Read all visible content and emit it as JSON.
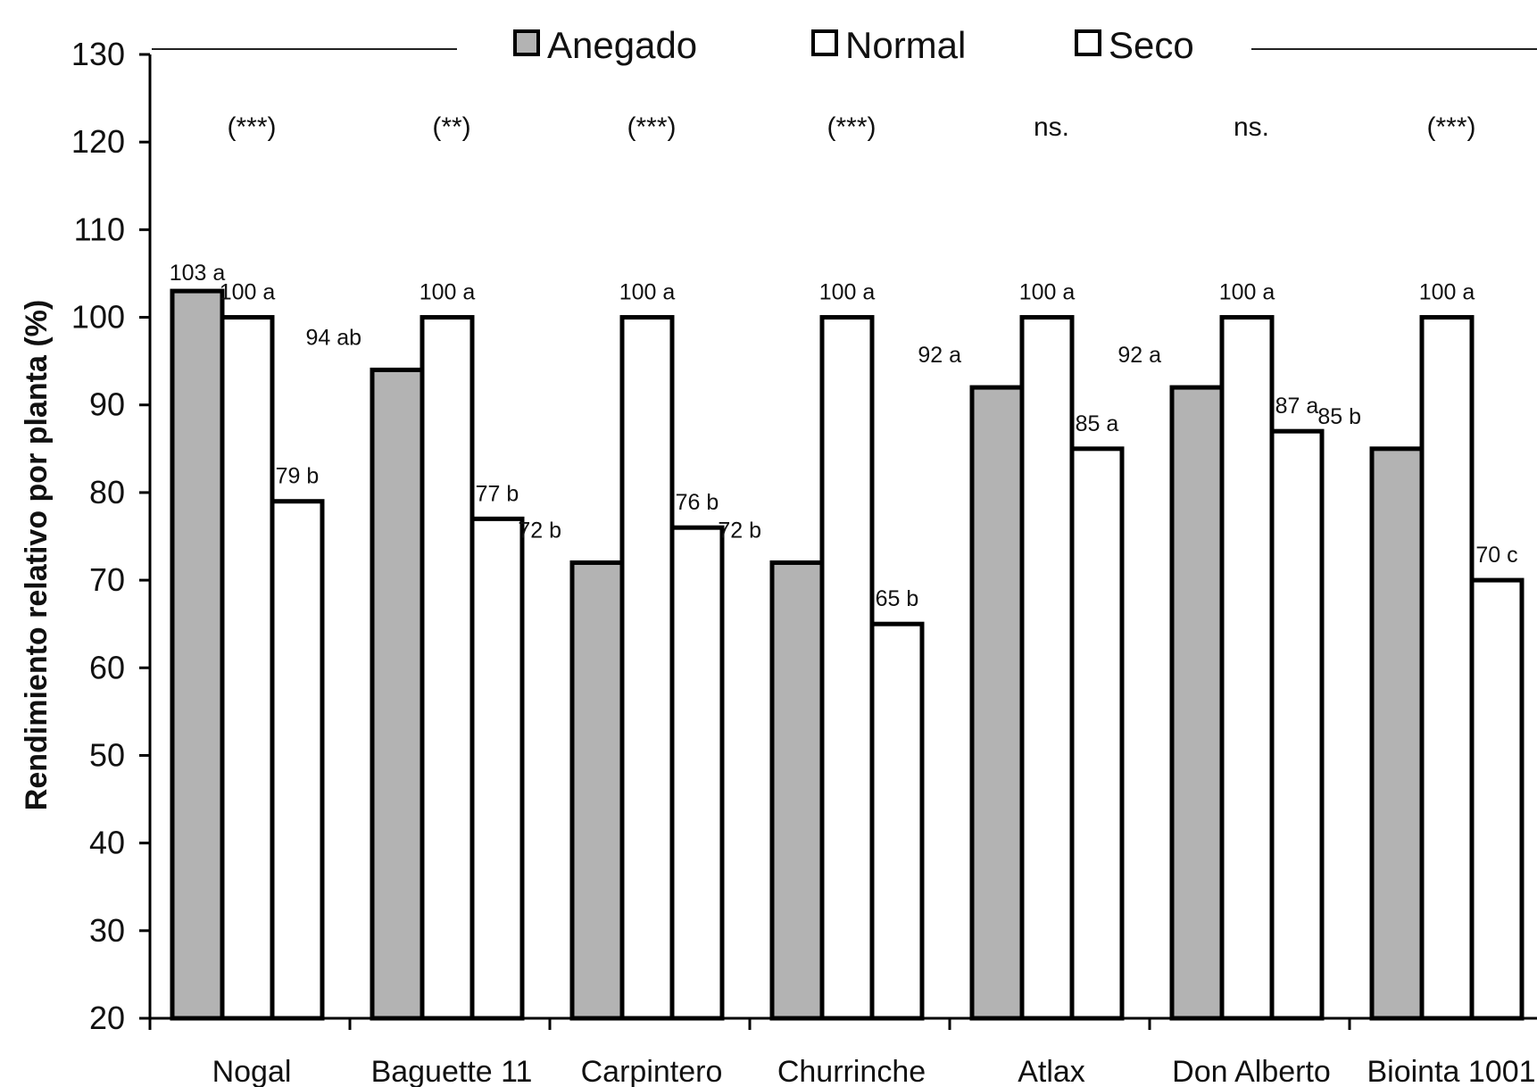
{
  "chart_data": {
    "type": "bar",
    "title": "",
    "xlabel": "",
    "ylabel": "Rendimiento relativo por planta (%)",
    "ylim": [
      20,
      130
    ],
    "yticks": [
      20,
      30,
      40,
      50,
      60,
      70,
      80,
      90,
      100,
      110,
      120,
      130
    ],
    "grid": false,
    "legend_position": "top",
    "categories": [
      "Nogal",
      "Baguette 11",
      "Carpintero",
      "Churrinche",
      "Atlax",
      "Don Alberto",
      "Biointa 1001"
    ],
    "series": [
      {
        "name": "Anegado",
        "color": "#b3b3b3",
        "values": [
          103,
          94,
          72,
          72,
          92,
          92,
          85
        ],
        "labels": [
          "103 a",
          "94 ab",
          "72 b",
          "72 b",
          "92 a",
          "92 a",
          "85 b"
        ]
      },
      {
        "name": "Normal",
        "color": "#ffffff",
        "values": [
          100,
          100,
          100,
          100,
          100,
          100,
          100
        ],
        "labels": [
          "100 a",
          "100 a",
          "100 a",
          "100 a",
          "100 a",
          "100 a",
          "100 a"
        ]
      },
      {
        "name": "Seco",
        "color": "#ffffff",
        "values": [
          79,
          77,
          76,
          65,
          85,
          87,
          70
        ],
        "labels": [
          "79 b",
          "77 b",
          "76 b",
          "65 b",
          "85 a",
          "87 a",
          "70 c"
        ]
      }
    ],
    "significance": [
      "(***)",
      "(**)",
      "(***)",
      "(***)",
      "ns.",
      "ns.",
      "(***)"
    ]
  }
}
